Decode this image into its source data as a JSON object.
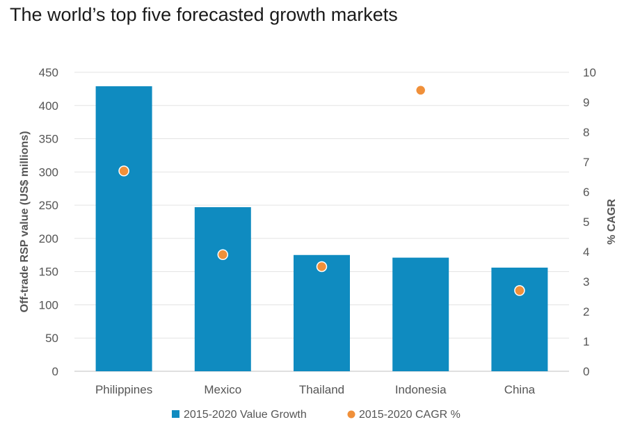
{
  "chart_data": {
    "type": "bar",
    "title": "The world’s top five forecasted growth markets",
    "categories": [
      "Philippines",
      "Mexico",
      "Thailand",
      "Indonesia",
      "China"
    ],
    "series": [
      {
        "name": "2015-2020 Value Growth",
        "type": "bar",
        "axis": "left",
        "color": "#0f8bc0",
        "values": [
          429,
          247,
          175,
          171,
          156
        ]
      },
      {
        "name": "2015-2020 CAGR %",
        "type": "scatter",
        "axis": "right",
        "color": "#f0903a",
        "values": [
          6.7,
          3.9,
          3.5,
          9.4,
          2.7
        ]
      }
    ],
    "ylabel": "Off-trade RSP value (US$ millions)",
    "y2label": "% CAGR",
    "ylim": [
      0,
      450
    ],
    "y2lim": [
      0,
      10
    ],
    "yticks": [
      "0",
      "50",
      "100",
      "150",
      "200",
      "250",
      "300",
      "350",
      "400",
      "450"
    ],
    "y2ticks": [
      "0",
      "1",
      "2",
      "3",
      "4",
      "5",
      "6",
      "7",
      "8",
      "9",
      "10"
    ],
    "grid": true,
    "legend": "bottom"
  }
}
